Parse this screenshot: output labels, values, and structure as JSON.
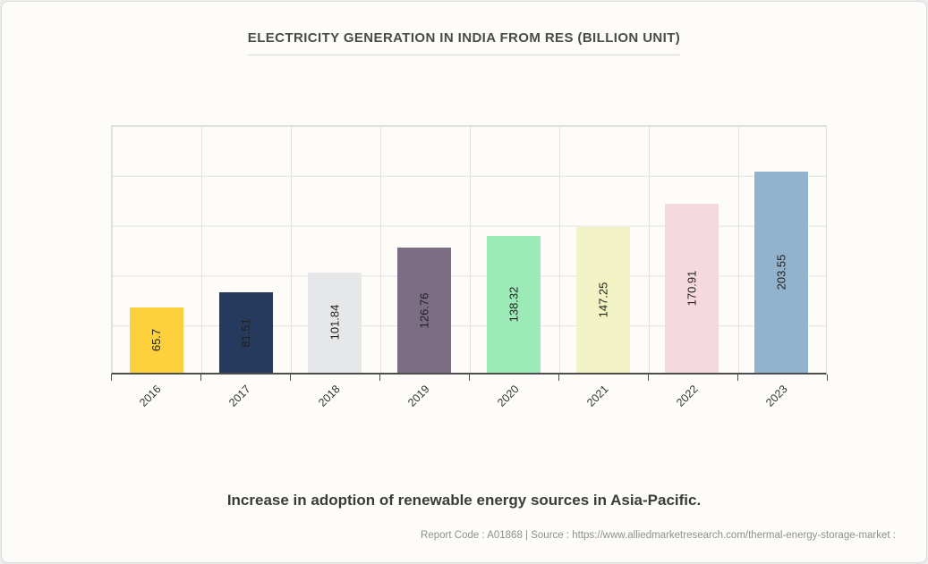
{
  "card": {
    "subtitle": "Increase in adoption of renewable energy sources in Asia-Pacific.",
    "footer": "Report Code : A01868  |  Source : https://www.alliedmarketresearch.com/thermal-energy-storage-market :"
  },
  "chart_data": {
    "type": "bar",
    "title": "ELECTRICITY GENERATION IN INDIA FROM RES (BILLION UNIT)",
    "categories": [
      "2016",
      "2017",
      "2018",
      "2019",
      "2020",
      "2021",
      "2022",
      "2023"
    ],
    "values": [
      65.7,
      81.51,
      101.84,
      126.76,
      138.32,
      147.25,
      170.91,
      203.55
    ],
    "value_labels": [
      "65.7",
      "81.51",
      "101.84",
      "126.76",
      "138.32",
      "147.25",
      "170.91",
      "203.55"
    ],
    "bar_colors": [
      "#fcd13b",
      "#263a5e",
      "#e6e7e8",
      "#7b6e84",
      "#9ceab6",
      "#f2f3c5",
      "#f6d9de",
      "#93b3cd"
    ],
    "value_label_color": "#1f1f1f",
    "xlabel": "",
    "ylabel": "",
    "ylim": [
      0,
      250
    ],
    "y_gridline_step": 50,
    "grid": true,
    "legend": false,
    "bar_label_rotation": -90,
    "x_tick_rotation": -45
  }
}
